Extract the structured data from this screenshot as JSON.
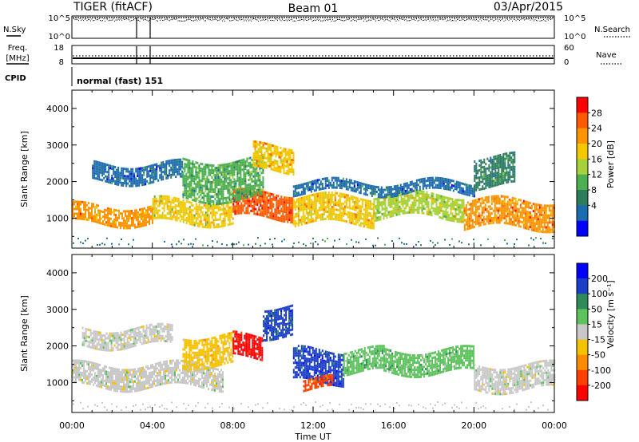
{
  "header": {
    "radar": "TIGER (fitACF)",
    "beam": "Beam 01",
    "date": "03/Apr/2015"
  },
  "nsky_panel": {
    "left_label": "N.Sky",
    "right_label": "N.Search",
    "left_ticks": [
      "10^5",
      "10^0"
    ],
    "right_ticks": [
      "10^5",
      "10^0"
    ]
  },
  "freq_panel": {
    "left_label_1": "Freq.",
    "left_label_2": "[MHz]",
    "right_label": "Nave",
    "left_ticks": [
      "18",
      "8"
    ],
    "right_ticks": [
      "60",
      "0"
    ]
  },
  "cpid": {
    "label": "CPID",
    "mode": "normal (fast) 151"
  },
  "power_panel": {
    "ylabel": "Slant Range [km]",
    "yticks": [
      "4000",
      "3000",
      "2000",
      "1000"
    ],
    "colorbar_label": "Power [dB]",
    "colorbar_ticks": [
      "28",
      "24",
      "20",
      "16",
      "12",
      "8",
      "4"
    ],
    "colorbar_colors": [
      "#ff0000",
      "#ff5a00",
      "#ff9400",
      "#f2c800",
      "#a8d23c",
      "#4caf50",
      "#2e7d5a",
      "#1b6bb0",
      "#0000ff"
    ]
  },
  "velocity_panel": {
    "ylabel": "Slant Range [km]",
    "yticks": [
      "4000",
      "3000",
      "2000",
      "1000"
    ],
    "colorbar_label": "Velocity [m s⁻¹]",
    "colorbar_ticks": [
      "200",
      "100",
      "50",
      "15",
      "-15",
      "-50",
      "-100",
      "-200"
    ],
    "colorbar_colors": [
      "#0000ff",
      "#1a3ec8",
      "#2e8b57",
      "#5cc25c",
      "#c8c8c8",
      "#f5c200",
      "#ff8c00",
      "#ff4000",
      "#ff0000"
    ]
  },
  "xaxis": {
    "label": "Time UT",
    "ticks": [
      "00:00",
      "04:00",
      "08:00",
      "12:00",
      "16:00",
      "20:00",
      "00:00"
    ]
  },
  "chart_data": [
    {
      "type": "heatmap",
      "title": "Power",
      "xlabel": "Time UT",
      "ylabel": "Slant Range [km]",
      "ylim": [
        180,
        4500
      ],
      "xlim": [
        "00:00",
        "24:00"
      ],
      "colorbar": "Power [dB]",
      "colorbar_range": [
        2,
        30
      ],
      "bands": [
        {
          "t0": 0.0,
          "t1": 4.0,
          "r0": 850,
          "r1": 1350,
          "value": 22
        },
        {
          "t0": 4.0,
          "t1": 8.0,
          "r0": 900,
          "r1": 1500,
          "value": 18
        },
        {
          "t0": 8.0,
          "t1": 11.0,
          "r0": 1000,
          "r1": 1700,
          "value": 26
        },
        {
          "t0": 11.0,
          "t1": 15.0,
          "r0": 850,
          "r1": 1600,
          "value": 20
        },
        {
          "t0": 15.0,
          "t1": 19.5,
          "r0": 1050,
          "r1": 1650,
          "value": 17
        },
        {
          "t0": 19.5,
          "t1": 24.0,
          "r0": 750,
          "r1": 1500,
          "value": 23
        },
        {
          "t0": 1.0,
          "t1": 5.5,
          "r0": 2000,
          "r1": 2500,
          "value": 8
        },
        {
          "t0": 5.5,
          "t1": 9.5,
          "r0": 1500,
          "r1": 2600,
          "value": 12
        },
        {
          "t0": 9.0,
          "t1": 11.0,
          "r0": 2300,
          "r1": 3000,
          "value": 20
        },
        {
          "t0": 11.0,
          "t1": 20.0,
          "r0": 1700,
          "r1": 2000,
          "value": 8
        },
        {
          "t0": 20.0,
          "t1": 22.0,
          "r0": 1900,
          "r1": 2700,
          "value": 10
        }
      ]
    },
    {
      "type": "heatmap",
      "title": "Velocity",
      "xlabel": "Time UT",
      "ylabel": "Slant Range [km]",
      "ylim": [
        180,
        4500
      ],
      "xlim": [
        "00:00",
        "24:00"
      ],
      "colorbar": "Velocity [m s⁻¹]",
      "colorbar_range": [
        -250,
        250
      ],
      "bands": [
        {
          "t0": 0.0,
          "t1": 7.5,
          "r0": 850,
          "r1": 1500,
          "value": 0
        },
        {
          "t0": 0.5,
          "t1": 5.0,
          "r0": 2000,
          "r1": 2500,
          "value": 0
        },
        {
          "t0": 5.5,
          "t1": 8.0,
          "r0": 1500,
          "r1": 2300,
          "value": -40
        },
        {
          "t0": 8.0,
          "t1": 9.5,
          "r0": 1700,
          "r1": 2300,
          "value": -220
        },
        {
          "t0": 9.5,
          "t1": 11.0,
          "r0": 2300,
          "r1": 3100,
          "value": 150
        },
        {
          "t0": 11.0,
          "t1": 13.5,
          "r0": 1000,
          "r1": 1900,
          "value": 180
        },
        {
          "t0": 13.5,
          "t1": 15.5,
          "r0": 1300,
          "r1": 1900,
          "value": 60
        },
        {
          "t0": 15.5,
          "t1": 20.0,
          "r0": 1300,
          "r1": 1900,
          "value": 40
        },
        {
          "t0": 20.0,
          "t1": 24.0,
          "r0": 800,
          "r1": 1500,
          "value": 0
        },
        {
          "t0": 11.5,
          "t1": 13.0,
          "r0": 800,
          "r1": 1100,
          "value": -150
        }
      ]
    }
  ]
}
